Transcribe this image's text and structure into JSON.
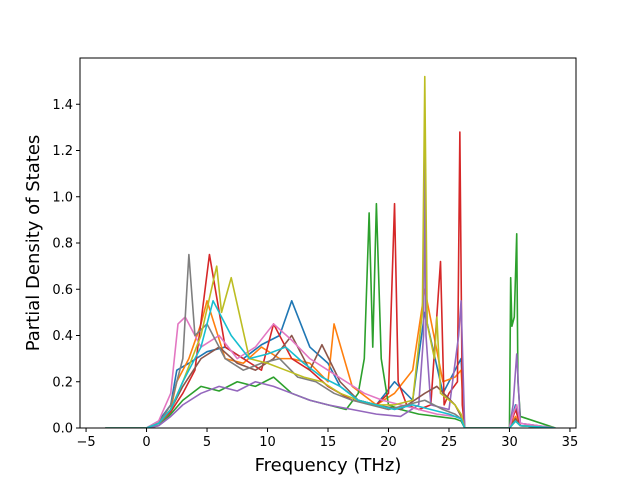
{
  "chart_data": {
    "type": "line",
    "title": "",
    "xlabel": "Frequency (THz)",
    "ylabel": "Partial Density of States",
    "xlim": [
      -5.5,
      35.5
    ],
    "ylim": [
      0.0,
      1.6
    ],
    "xticks": [
      -5,
      0,
      5,
      10,
      15,
      20,
      25,
      30,
      35
    ],
    "xtick_labels": [
      "−5",
      "0",
      "5",
      "10",
      "15",
      "20",
      "25",
      "30",
      "35"
    ],
    "yticks": [
      0.0,
      0.2,
      0.4,
      0.6,
      0.8,
      1.0,
      1.2,
      1.4
    ],
    "ytick_labels": [
      "0.0",
      "0.2",
      "0.4",
      "0.6",
      "0.8",
      "1.0",
      "1.2",
      "1.4"
    ],
    "grid": false,
    "legend": "none",
    "x_data_range": [
      -3.4,
      33.8
    ],
    "colors": [
      "#1f77b4",
      "#ff7f0e",
      "#2ca02c",
      "#d62728",
      "#9467bd",
      "#8c564b",
      "#e377c2",
      "#7f7f7f",
      "#bcbd22",
      "#17becf"
    ],
    "series": [
      {
        "color": "#1f77b4",
        "x": [
          -3.4,
          0.0,
          1.0,
          2.0,
          2.5,
          3.5,
          5.0,
          6.5,
          8.0,
          9.5,
          11.0,
          12.0,
          13.5,
          15.0,
          16.0,
          17.5,
          19.0,
          20.5,
          22.0,
          23.0,
          24.5,
          25.5,
          26.0,
          26.3,
          30.0,
          30.5,
          30.9,
          33.8
        ],
        "y": [
          0.0,
          0.0,
          0.03,
          0.1,
          0.25,
          0.28,
          0.33,
          0.35,
          0.3,
          0.36,
          0.4,
          0.55,
          0.35,
          0.28,
          0.18,
          0.12,
          0.1,
          0.2,
          0.12,
          0.5,
          0.15,
          0.25,
          0.3,
          0.0,
          0.0,
          0.1,
          0.02,
          0.0
        ]
      },
      {
        "color": "#ff7f0e",
        "x": [
          -3.4,
          0.0,
          1.0,
          2.0,
          2.5,
          3.5,
          4.5,
          5.0,
          6.5,
          8.0,
          9.5,
          11.0,
          12.0,
          13.5,
          15.0,
          15.5,
          17.0,
          19.0,
          20.5,
          22.0,
          23.0,
          24.5,
          25.5,
          26.0,
          26.3,
          30.0,
          30.5,
          30.9,
          33.8
        ],
        "y": [
          0.0,
          0.0,
          0.02,
          0.08,
          0.2,
          0.3,
          0.45,
          0.55,
          0.3,
          0.28,
          0.35,
          0.3,
          0.3,
          0.28,
          0.2,
          0.45,
          0.18,
          0.1,
          0.15,
          0.25,
          0.6,
          0.2,
          0.22,
          0.25,
          0.0,
          0.0,
          0.05,
          0.01,
          0.0
        ]
      },
      {
        "color": "#2ca02c",
        "x": [
          -3.4,
          0.0,
          1.0,
          2.0,
          3.0,
          4.5,
          6.0,
          7.5,
          9.0,
          10.5,
          12.0,
          13.5,
          15.0,
          16.5,
          17.5,
          18.0,
          18.4,
          18.7,
          19.0,
          19.4,
          20.0,
          21.0,
          22.5,
          24.0,
          25.5,
          26.0,
          26.3,
          30.0,
          30.1,
          30.2,
          30.4,
          30.6,
          30.7,
          30.9,
          33.8
        ],
        "y": [
          0.0,
          0.0,
          0.01,
          0.06,
          0.12,
          0.18,
          0.16,
          0.2,
          0.18,
          0.22,
          0.15,
          0.12,
          0.1,
          0.08,
          0.15,
          0.3,
          0.93,
          0.35,
          0.97,
          0.3,
          0.1,
          0.08,
          0.06,
          0.05,
          0.04,
          0.03,
          0.0,
          0.0,
          0.65,
          0.44,
          0.48,
          0.84,
          0.2,
          0.05,
          0.0
        ]
      },
      {
        "color": "#d62728",
        "x": [
          -3.4,
          0.0,
          1.0,
          2.0,
          3.0,
          4.0,
          5.2,
          6.5,
          8.0,
          9.5,
          10.5,
          12.0,
          13.5,
          15.0,
          17.0,
          19.0,
          20.0,
          20.5,
          20.8,
          21.5,
          22.5,
          23.5,
          24.3,
          24.6,
          25.0,
          25.7,
          25.9,
          26.1,
          26.3,
          30.0,
          30.5,
          30.9,
          33.8
        ],
        "y": [
          0.0,
          0.0,
          0.02,
          0.07,
          0.15,
          0.25,
          0.75,
          0.35,
          0.3,
          0.25,
          0.45,
          0.3,
          0.25,
          0.18,
          0.12,
          0.1,
          0.15,
          0.97,
          0.2,
          0.1,
          0.08,
          0.1,
          0.72,
          0.1,
          0.15,
          0.2,
          1.28,
          0.1,
          0.0,
          0.0,
          0.08,
          0.01,
          0.0
        ]
      },
      {
        "color": "#9467bd",
        "x": [
          -3.4,
          0.0,
          1.0,
          2.0,
          3.0,
          4.5,
          6.0,
          7.5,
          9.0,
          10.5,
          12.0,
          13.5,
          15.0,
          17.0,
          19.0,
          21.0,
          22.5,
          22.9,
          23.0,
          23.1,
          23.5,
          25.0,
          25.8,
          26.0,
          26.3,
          30.0,
          30.3,
          30.6,
          30.9,
          33.8
        ],
        "y": [
          0.0,
          0.0,
          0.01,
          0.05,
          0.1,
          0.15,
          0.18,
          0.16,
          0.2,
          0.18,
          0.15,
          0.12,
          0.1,
          0.08,
          0.06,
          0.05,
          0.1,
          0.4,
          1.2,
          0.4,
          0.1,
          0.08,
          0.4,
          0.55,
          0.0,
          0.0,
          0.1,
          0.32,
          0.02,
          0.0
        ]
      },
      {
        "color": "#8c564b",
        "x": [
          -3.4,
          0.0,
          1.0,
          2.0,
          3.0,
          4.5,
          6.0,
          7.5,
          9.0,
          10.5,
          12.0,
          13.5,
          14.5,
          16.0,
          17.5,
          19.0,
          21.0,
          23.0,
          24.0,
          25.5,
          26.0,
          26.3,
          30.0,
          30.5,
          30.9,
          33.8
        ],
        "y": [
          0.0,
          0.0,
          0.02,
          0.08,
          0.18,
          0.3,
          0.35,
          0.28,
          0.25,
          0.3,
          0.4,
          0.25,
          0.36,
          0.2,
          0.12,
          0.1,
          0.08,
          0.15,
          0.18,
          0.1,
          0.05,
          0.0,
          0.0,
          0.04,
          0.01,
          0.0
        ]
      },
      {
        "color": "#e377c2",
        "x": [
          -3.4,
          0.0,
          1.0,
          2.0,
          2.6,
          3.2,
          4.5,
          6.0,
          7.5,
          9.0,
          10.5,
          12.0,
          13.5,
          15.0,
          16.5,
          18.0,
          19.5,
          21.0,
          22.5,
          24.0,
          25.5,
          26.0,
          26.3,
          30.0,
          30.3,
          30.6,
          30.9,
          33.8
        ],
        "y": [
          0.0,
          0.0,
          0.03,
          0.15,
          0.45,
          0.48,
          0.35,
          0.4,
          0.3,
          0.35,
          0.45,
          0.38,
          0.3,
          0.25,
          0.2,
          0.15,
          0.12,
          0.1,
          0.08,
          0.06,
          0.05,
          0.04,
          0.0,
          0.0,
          0.06,
          0.1,
          0.02,
          0.0
        ]
      },
      {
        "color": "#7f7f7f",
        "x": [
          -3.4,
          0.0,
          1.0,
          2.0,
          3.0,
          3.5,
          4.0,
          5.0,
          6.5,
          8.0,
          9.5,
          11.0,
          12.5,
          14.0,
          15.5,
          17.0,
          18.5,
          20.0,
          21.5,
          23.0,
          24.5,
          25.5,
          26.0,
          26.3,
          30.0,
          30.5,
          30.9,
          33.8
        ],
        "y": [
          0.0,
          0.0,
          0.02,
          0.1,
          0.3,
          0.75,
          0.4,
          0.45,
          0.3,
          0.25,
          0.28,
          0.3,
          0.22,
          0.2,
          0.15,
          0.12,
          0.1,
          0.08,
          0.1,
          0.12,
          0.08,
          0.06,
          0.04,
          0.0,
          0.0,
          0.03,
          0.01,
          0.0
        ]
      },
      {
        "color": "#bcbd22",
        "x": [
          -3.4,
          0.0,
          1.0,
          2.0,
          3.0,
          4.5,
          5.8,
          6.2,
          7.0,
          8.5,
          10.0,
          11.5,
          13.0,
          14.5,
          16.0,
          17.5,
          19.0,
          20.5,
          22.0,
          22.8,
          23.0,
          23.2,
          23.8,
          24.0,
          24.3,
          25.5,
          26.0,
          26.3,
          30.0,
          30.5,
          30.9,
          33.8
        ],
        "y": [
          0.0,
          0.0,
          0.02,
          0.08,
          0.2,
          0.4,
          0.7,
          0.5,
          0.65,
          0.3,
          0.28,
          0.25,
          0.22,
          0.2,
          0.15,
          0.12,
          0.1,
          0.1,
          0.12,
          0.5,
          1.52,
          0.45,
          0.3,
          0.48,
          0.15,
          0.1,
          0.06,
          0.0,
          0.0,
          0.03,
          0.01,
          0.0
        ]
      },
      {
        "color": "#17becf",
        "x": [
          -3.4,
          0.0,
          1.0,
          2.0,
          3.0,
          4.5,
          5.5,
          7.0,
          8.5,
          10.0,
          11.5,
          13.0,
          14.5,
          16.0,
          17.5,
          19.0,
          20.5,
          22.0,
          23.5,
          25.0,
          26.0,
          26.3,
          30.0,
          30.5,
          30.9,
          33.8
        ],
        "y": [
          0.0,
          0.0,
          0.02,
          0.08,
          0.2,
          0.35,
          0.55,
          0.4,
          0.3,
          0.32,
          0.35,
          0.28,
          0.22,
          0.18,
          0.12,
          0.1,
          0.08,
          0.1,
          0.08,
          0.06,
          0.04,
          0.0,
          0.0,
          0.03,
          0.01,
          0.0
        ]
      }
    ]
  }
}
